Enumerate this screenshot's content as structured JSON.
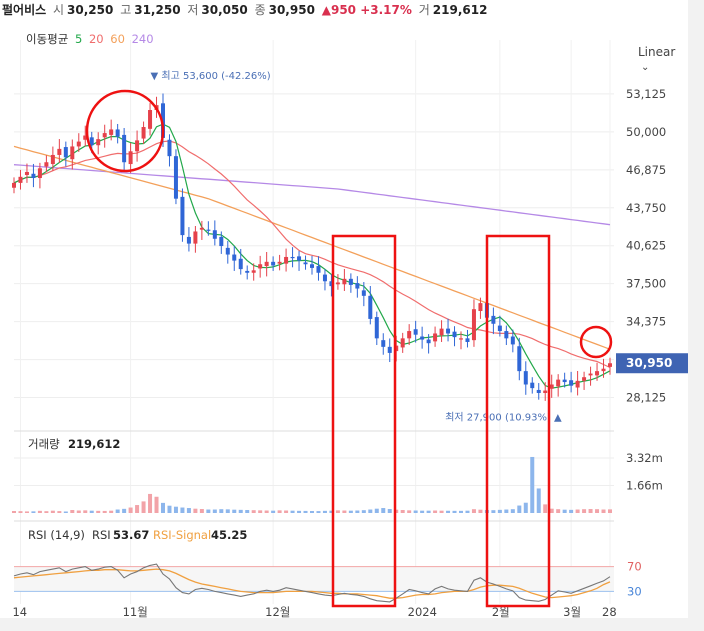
{
  "header": {
    "name": "펄어비스",
    "open_label": "시",
    "open": "30,250",
    "high_label": "고",
    "high": "31,250",
    "low_label": "저",
    "low": "30,050",
    "close_label": "종",
    "close": "30,950",
    "change": "▲950 +3.17%",
    "volume_label": "거",
    "volume": "219,612"
  },
  "ma_legend": {
    "title": "이동평균",
    "items": [
      {
        "label": "5",
        "color": "#22a84a"
      },
      {
        "label": "20",
        "color": "#f06d6d"
      },
      {
        "label": "60",
        "color": "#f3a05a"
      },
      {
        "label": "240",
        "color": "#b589e6"
      }
    ]
  },
  "scale_toggle": "Linear",
  "chart_data": [
    {
      "type": "candlestick",
      "title": "",
      "scale": "linear",
      "y_ticks": [
        "53,125",
        "50,000",
        "46,875",
        "43,750",
        "40,625",
        "37,500",
        "34,375",
        "31,250",
        "28,125"
      ],
      "y_tick_values": [
        53125,
        50000,
        46875,
        43750,
        40625,
        37500,
        34375,
        31250,
        28125
      ],
      "ylim": [
        25700,
        56000
      ],
      "x_ticks": [
        "14",
        "11월",
        "12월",
        "2024",
        "2월",
        "3월",
        "28"
      ],
      "last_price_label": "30,950",
      "last_price": 30950,
      "high_annotation": "▼ 최고 53,600 (-42.26%)",
      "high_value": 53600,
      "low_annotation": "최저 27,900 (10.93%) ▲",
      "low_value": 27900,
      "ohlc_note": "approximate daily closes",
      "closes": [
        45800,
        46300,
        46700,
        46200,
        47000,
        47500,
        48100,
        48600,
        47900,
        48800,
        49200,
        49700,
        48900,
        49400,
        49900,
        50200,
        49600,
        47500,
        48400,
        49300,
        50400,
        51800,
        52200,
        49500,
        48000,
        44500,
        41500,
        40800,
        41800,
        42100,
        41900,
        41200,
        40600,
        39900,
        39400,
        38700,
        38400,
        38600,
        39100,
        39300,
        39000,
        39300,
        39700,
        39600,
        39400,
        39100,
        38800,
        38400,
        37700,
        37300,
        37600,
        37900,
        37400,
        37100,
        36500,
        34600,
        33000,
        32300,
        31800,
        32400,
        33000,
        33600,
        33300,
        32900,
        32600,
        33400,
        33800,
        33400,
        33100,
        33000,
        32700,
        35400,
        35900,
        34700,
        34200,
        33600,
        33000,
        32500,
        30300,
        29200,
        28900,
        28500,
        28700,
        29200,
        29600,
        29400,
        29100,
        29500,
        29800,
        30100,
        30300,
        30500,
        30950
      ],
      "series": [
        {
          "name": "5",
          "color": "#22a84a"
        },
        {
          "name": "20",
          "color": "#f06d6d"
        },
        {
          "name": "60",
          "color": "#f3a05a"
        },
        {
          "name": "240",
          "color": "#b589e6"
        }
      ]
    },
    {
      "type": "bar",
      "title": "거래량",
      "title_value": "219,612",
      "y_ticks": [
        "3.32m",
        "1.66m"
      ],
      "y_tick_values": [
        3320000,
        1660000
      ],
      "ylim": [
        0,
        3800000
      ],
      "values": [
        120000,
        110000,
        95000,
        100000,
        130000,
        110000,
        140000,
        115000,
        90000,
        180000,
        150000,
        160000,
        140000,
        130000,
        125000,
        140000,
        210000,
        250000,
        330000,
        480000,
        700000,
        1150000,
        980000,
        610000,
        440000,
        380000,
        330000,
        300000,
        260000,
        240000,
        210000,
        210000,
        230000,
        220000,
        200000,
        190000,
        180000,
        170000,
        160000,
        150000,
        140000,
        160000,
        150000,
        140000,
        130000,
        125000,
        120000,
        115000,
        130000,
        140000,
        160000,
        150000,
        140000,
        150000,
        170000,
        210000,
        260000,
        300000,
        240000,
        200000,
        180000,
        160000,
        150000,
        140000,
        140000,
        150000,
        140000,
        135000,
        130000,
        130000,
        140000,
        230000,
        200000,
        180000,
        170000,
        190000,
        210000,
        230000,
        450000,
        620000,
        3380000,
        1480000,
        520000,
        260000,
        230000,
        200000,
        190000,
        210000,
        230000,
        240000,
        230000,
        210000,
        219612
      ]
    },
    {
      "type": "line",
      "title": "RSI (14,9)",
      "series": [
        {
          "name": "RSI",
          "value_label": "53.67",
          "color": "#777777"
        },
        {
          "name": "RSI-Signal",
          "value_label": "45.25",
          "color": "#f0a040"
        }
      ],
      "y_ticks": [
        "70",
        "30"
      ],
      "ylim": [
        0,
        100
      ],
      "rsi": [
        55,
        58,
        60,
        57,
        62,
        64,
        66,
        68,
        62,
        66,
        68,
        70,
        64,
        66,
        69,
        70,
        64,
        52,
        58,
        62,
        68,
        72,
        74,
        58,
        50,
        36,
        28,
        26,
        33,
        35,
        33,
        30,
        28,
        26,
        24,
        22,
        24,
        26,
        30,
        32,
        30,
        32,
        36,
        34,
        32,
        30,
        28,
        26,
        24,
        23,
        25,
        27,
        25,
        24,
        22,
        18,
        15,
        14,
        13,
        19,
        26,
        33,
        31,
        28,
        26,
        34,
        38,
        34,
        32,
        31,
        30,
        48,
        52,
        45,
        42,
        38,
        34,
        31,
        20,
        16,
        15,
        14,
        17,
        24,
        31,
        29,
        27,
        31,
        35,
        39,
        43,
        47,
        53.67
      ],
      "signal": [
        52,
        53,
        54,
        55,
        56,
        57,
        58,
        59,
        60,
        61,
        62,
        63,
        64,
        64,
        65,
        65,
        65,
        64,
        63,
        63,
        64,
        65,
        66,
        65,
        63,
        59,
        54,
        49,
        45,
        42,
        40,
        38,
        36,
        34,
        32,
        30,
        29,
        28,
        28,
        28,
        28,
        29,
        30,
        30,
        30,
        30,
        30,
        29,
        28,
        27,
        27,
        26,
        26,
        26,
        25,
        24,
        23,
        21,
        19,
        19,
        20,
        22,
        24,
        25,
        25,
        26,
        28,
        29,
        30,
        30,
        30,
        33,
        37,
        39,
        40,
        40,
        39,
        38,
        35,
        31,
        27,
        24,
        21,
        20,
        21,
        22,
        23,
        25,
        28,
        31,
        35,
        41,
        45.25
      ]
    }
  ]
}
